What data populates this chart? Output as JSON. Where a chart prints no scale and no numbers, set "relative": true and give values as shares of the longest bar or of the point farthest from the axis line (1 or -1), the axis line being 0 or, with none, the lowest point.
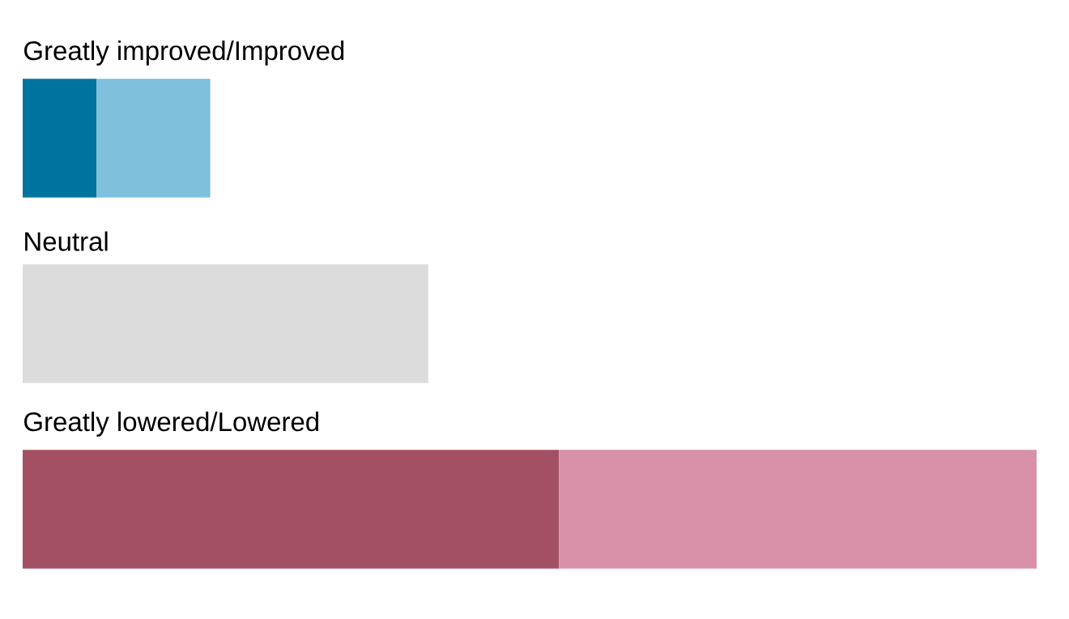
{
  "chart_data": {
    "type": "bar",
    "orientation": "horizontal",
    "stacked": true,
    "relative": true,
    "categories": [
      "Greatly improved/Improved",
      "Neutral",
      "Greatly lowered/Lowered"
    ],
    "series": [
      {
        "colors": [
          "#00739f",
          "#dcdcdc",
          "#a35064"
        ],
        "values": [
          0.073,
          0.4,
          0.529
        ]
      },
      {
        "colors": [
          "#7fc0dc",
          "#dcdcdc",
          "#d891a9"
        ],
        "values": [
          0.112,
          null,
          0.471
        ]
      }
    ]
  }
}
